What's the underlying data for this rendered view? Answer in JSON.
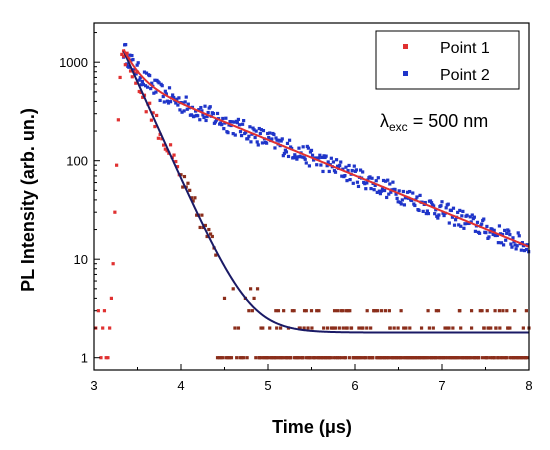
{
  "chart_data": {
    "type": "scatter",
    "xlabel_main": "Time (",
    "xlabel_symbol": "μ",
    "xlabel_tail": "s)",
    "ylabel": "PL Intensity (arb. un.)",
    "x_range": [
      3,
      8
    ],
    "y_range": [
      0.75,
      2500
    ],
    "y_scale": "log",
    "x_ticks": [
      "3",
      "4",
      "5",
      "6",
      "7",
      "8"
    ],
    "y_ticks": [
      "1",
      "10",
      "100",
      "1000"
    ],
    "legend_position": "top-right",
    "annotation": {
      "symbol": "λ",
      "subscript": "exc",
      "text": " = 500 nm"
    },
    "series": [
      {
        "name": "Point 1",
        "color": "#e03131",
        "later_color": "#8b2e1b",
        "rise_points": [
          [
            3.16,
            1
          ],
          [
            3.18,
            2
          ],
          [
            3.2,
            4
          ],
          [
            3.22,
            9
          ],
          [
            3.24,
            30
          ],
          [
            3.26,
            90
          ],
          [
            3.28,
            260
          ],
          [
            3.3,
            700
          ],
          [
            3.32,
            1200
          ],
          [
            3.34,
            1300
          ]
        ],
        "decay_model": {
          "amplitude": 1300,
          "tau": 0.22,
          "offset": 1.8,
          "t0": 3.34
        },
        "x_end": 8
      },
      {
        "name": "Point 2",
        "color": "#1f35c9",
        "decay_model": {
          "amplitude1": 700,
          "tau1": 0.15,
          "amplitude2": 650,
          "tau2": 1.2,
          "offset": 0,
          "t0": 3.34
        },
        "x_end": 8
      }
    ],
    "fits": [
      {
        "color": "#1a1a66",
        "model": "point1"
      },
      {
        "color": "#e03131",
        "model": "point2"
      }
    ]
  }
}
